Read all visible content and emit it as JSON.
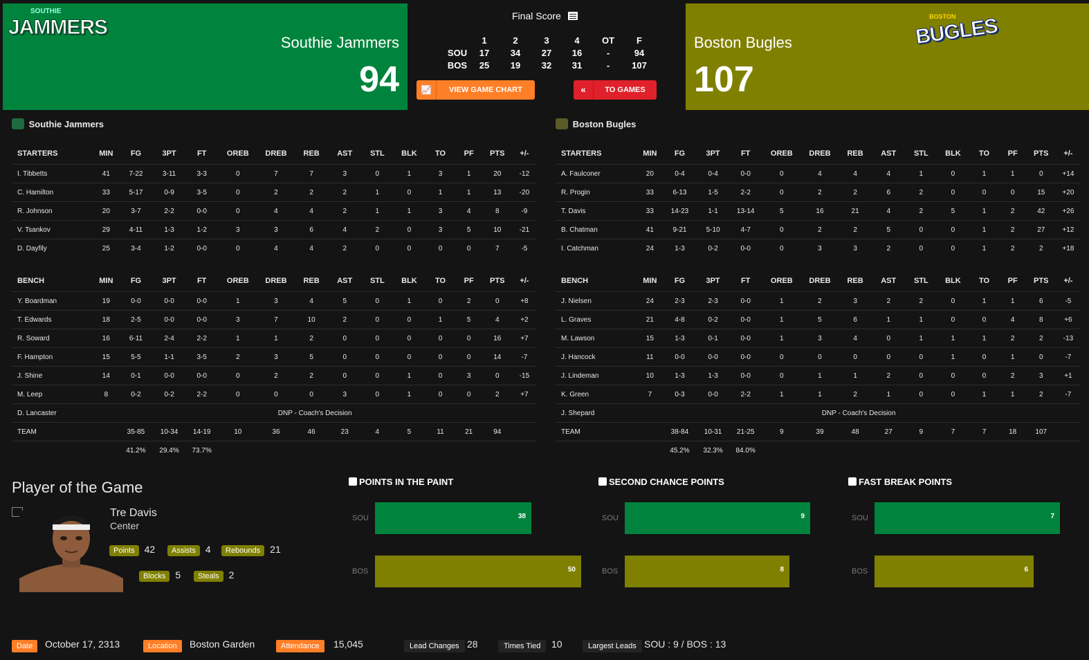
{
  "header": {
    "home": {
      "name": "Southie Jammers",
      "score": "94",
      "logo_text": "JAMMERS",
      "logo_sub": "SOUTHIE",
      "color": "#00843d"
    },
    "away": {
      "name": "Boston Bugles",
      "score": "107",
      "logo_text": "BUGLES",
      "logo_sub": "BOSTON",
      "color": "#808000"
    },
    "final_score_label": "Final Score",
    "linescore": {
      "periods": [
        "1",
        "2",
        "3",
        "4",
        "OT",
        "F"
      ],
      "rows": [
        {
          "abbr": "SOU",
          "scores": [
            "17",
            "34",
            "27",
            "16",
            "-",
            "94"
          ]
        },
        {
          "abbr": "BOS",
          "scores": [
            "25",
            "19",
            "32",
            "31",
            "-",
            "107"
          ]
        }
      ]
    },
    "buttons": {
      "chart": "VIEW GAME CHART",
      "games": "TO GAMES"
    }
  },
  "box_columns": [
    "MIN",
    "FG",
    "3PT",
    "FT",
    "OREB",
    "DREB",
    "REB",
    "AST",
    "STL",
    "BLK",
    "TO",
    "PF",
    "PTS",
    "+/-"
  ],
  "home_box": {
    "team": "Southie Jammers",
    "starters_label": "STARTERS",
    "bench_label": "BENCH",
    "starters": [
      [
        "I. Tibbetts",
        "41",
        "7-22",
        "3-11",
        "3-3",
        "0",
        "7",
        "7",
        "3",
        "0",
        "1",
        "3",
        "1",
        "20",
        "-12"
      ],
      [
        "C. Hamilton",
        "33",
        "5-17",
        "0-9",
        "3-5",
        "0",
        "2",
        "2",
        "2",
        "1",
        "0",
        "1",
        "1",
        "13",
        "-20"
      ],
      [
        "R. Johnson",
        "20",
        "3-7",
        "2-2",
        "0-0",
        "0",
        "4",
        "4",
        "2",
        "1",
        "1",
        "3",
        "4",
        "8",
        "-9"
      ],
      [
        "V. Tsankov",
        "29",
        "4-11",
        "1-3",
        "1-2",
        "3",
        "3",
        "6",
        "4",
        "2",
        "0",
        "3",
        "5",
        "10",
        "-21"
      ],
      [
        "D. Dayfily",
        "25",
        "3-4",
        "1-2",
        "0-0",
        "0",
        "4",
        "4",
        "2",
        "0",
        "0",
        "0",
        "0",
        "7",
        "-5"
      ]
    ],
    "bench": [
      [
        "Y. Boardman",
        "19",
        "0-0",
        "0-0",
        "0-0",
        "1",
        "3",
        "4",
        "5",
        "0",
        "1",
        "0",
        "2",
        "0",
        "+8"
      ],
      [
        "T. Edwards",
        "18",
        "2-5",
        "0-0",
        "0-0",
        "3",
        "7",
        "10",
        "2",
        "0",
        "0",
        "1",
        "5",
        "4",
        "+2"
      ],
      [
        "R. Soward",
        "16",
        "6-11",
        "2-4",
        "2-2",
        "1",
        "1",
        "2",
        "0",
        "0",
        "0",
        "0",
        "0",
        "16",
        "+7"
      ],
      [
        "F. Hampton",
        "15",
        "5-5",
        "1-1",
        "3-5",
        "2",
        "3",
        "5",
        "0",
        "0",
        "0",
        "0",
        "0",
        "14",
        "-7"
      ],
      [
        "J. Shine",
        "14",
        "0-1",
        "0-0",
        "0-0",
        "0",
        "2",
        "2",
        "0",
        "0",
        "1",
        "0",
        "3",
        "0",
        "-15"
      ],
      [
        "M. Leep",
        "8",
        "0-2",
        "0-2",
        "2-2",
        "0",
        "0",
        "0",
        "3",
        "0",
        "1",
        "0",
        "0",
        "2",
        "+7"
      ]
    ],
    "dnp": {
      "name": "D. Lancaster",
      "reason": "DNP - Coach's Decision"
    },
    "team_row": [
      "TEAM",
      "",
      "35-85",
      "10-34",
      "14-19",
      "10",
      "36",
      "46",
      "23",
      "4",
      "5",
      "11",
      "21",
      "94",
      ""
    ],
    "pct_row": [
      "",
      "",
      "41.2%",
      "29.4%",
      "73.7%",
      "",
      "",
      "",
      "",
      "",
      "",
      "",
      "",
      "",
      ""
    ]
  },
  "away_box": {
    "team": "Boston Bugles",
    "starters_label": "STARTERS",
    "bench_label": "BENCH",
    "starters": [
      [
        "A. Faulconer",
        "20",
        "0-4",
        "0-4",
        "0-0",
        "0",
        "4",
        "4",
        "4",
        "1",
        "0",
        "1",
        "1",
        "0",
        "+14"
      ],
      [
        "R. Progin",
        "33",
        "6-13",
        "1-5",
        "2-2",
        "0",
        "2",
        "2",
        "6",
        "2",
        "0",
        "0",
        "0",
        "15",
        "+20"
      ],
      [
        "T. Davis",
        "33",
        "14-23",
        "1-1",
        "13-14",
        "5",
        "16",
        "21",
        "4",
        "2",
        "5",
        "1",
        "2",
        "42",
        "+26"
      ],
      [
        "B. Chatman",
        "41",
        "9-21",
        "5-10",
        "4-7",
        "0",
        "2",
        "2",
        "5",
        "0",
        "0",
        "1",
        "2",
        "27",
        "+12"
      ],
      [
        "I. Catchman",
        "24",
        "1-3",
        "0-2",
        "0-0",
        "0",
        "3",
        "3",
        "2",
        "0",
        "0",
        "1",
        "2",
        "2",
        "+18"
      ]
    ],
    "bench": [
      [
        "J. Nielsen",
        "24",
        "2-3",
        "2-3",
        "0-0",
        "1",
        "2",
        "3",
        "2",
        "2",
        "0",
        "1",
        "1",
        "6",
        "-5"
      ],
      [
        "L. Graves",
        "21",
        "4-8",
        "0-2",
        "0-0",
        "1",
        "5",
        "6",
        "1",
        "1",
        "0",
        "0",
        "4",
        "8",
        "+6"
      ],
      [
        "M. Lawson",
        "15",
        "1-3",
        "0-1",
        "0-0",
        "1",
        "3",
        "4",
        "0",
        "1",
        "1",
        "1",
        "2",
        "2",
        "-13"
      ],
      [
        "J. Hancock",
        "11",
        "0-0",
        "0-0",
        "0-0",
        "0",
        "0",
        "0",
        "0",
        "0",
        "1",
        "0",
        "1",
        "0",
        "-7"
      ],
      [
        "J. Lindeman",
        "10",
        "1-3",
        "1-3",
        "0-0",
        "0",
        "1",
        "1",
        "2",
        "0",
        "0",
        "0",
        "2",
        "3",
        "+1"
      ],
      [
        "K. Green",
        "7",
        "0-3",
        "0-0",
        "2-2",
        "1",
        "1",
        "2",
        "1",
        "0",
        "0",
        "1",
        "1",
        "2",
        "-7"
      ]
    ],
    "dnp": {
      "name": "J. Shepard",
      "reason": "DNP - Coach's Decision"
    },
    "team_row": [
      "TEAM",
      "",
      "38-84",
      "10-31",
      "21-25",
      "9",
      "39",
      "48",
      "27",
      "9",
      "7",
      "7",
      "18",
      "107",
      ""
    ],
    "pct_row": [
      "",
      "",
      "45.2%",
      "32.3%",
      "84.0%",
      "",
      "",
      "",
      "",
      "",
      "",
      "",
      "",
      "",
      ""
    ]
  },
  "pog": {
    "title": "Player of the Game",
    "name": "Tre Davis",
    "position": "Center",
    "stats": [
      {
        "label": "Points",
        "value": "42"
      },
      {
        "label": "Assists",
        "value": "4"
      },
      {
        "label": "Rebounds",
        "value": "21"
      },
      {
        "label": "Blocks",
        "value": "5"
      },
      {
        "label": "Steals",
        "value": "2"
      }
    ]
  },
  "charts": [
    {
      "title": "POINTS IN THE PAINT",
      "icon": "paint-icon",
      "rows": [
        {
          "team": "SOU",
          "value": 38
        },
        {
          "team": "BOS",
          "value": 50
        }
      ]
    },
    {
      "title": "SECOND CHANCE POINTS",
      "icon": "hand-icon",
      "rows": [
        {
          "team": "SOU",
          "value": 9
        },
        {
          "team": "BOS",
          "value": 8
        }
      ]
    },
    {
      "title": "FAST BREAK POINTS",
      "icon": "helmet-icon",
      "rows": [
        {
          "team": "SOU",
          "value": 7
        },
        {
          "team": "BOS",
          "value": 6
        }
      ]
    }
  ],
  "footer": {
    "date_label": "Date",
    "date": "October 17, 2313",
    "location_label": "Location",
    "location": "Boston Garden",
    "attendance_label": "Attendance",
    "attendance": "15,045",
    "lead_changes_label": "Lead Changes",
    "lead_changes": "28",
    "times_tied_label": "Times Tied",
    "times_tied": "10",
    "largest_leads_label": "Largest Leads",
    "largest_leads": "SOU : 9 / BOS : 13"
  },
  "colors": {
    "home": "#00843d",
    "away": "#808000",
    "accent_orange": "#ff7f27",
    "red_button": "#e0202a"
  }
}
